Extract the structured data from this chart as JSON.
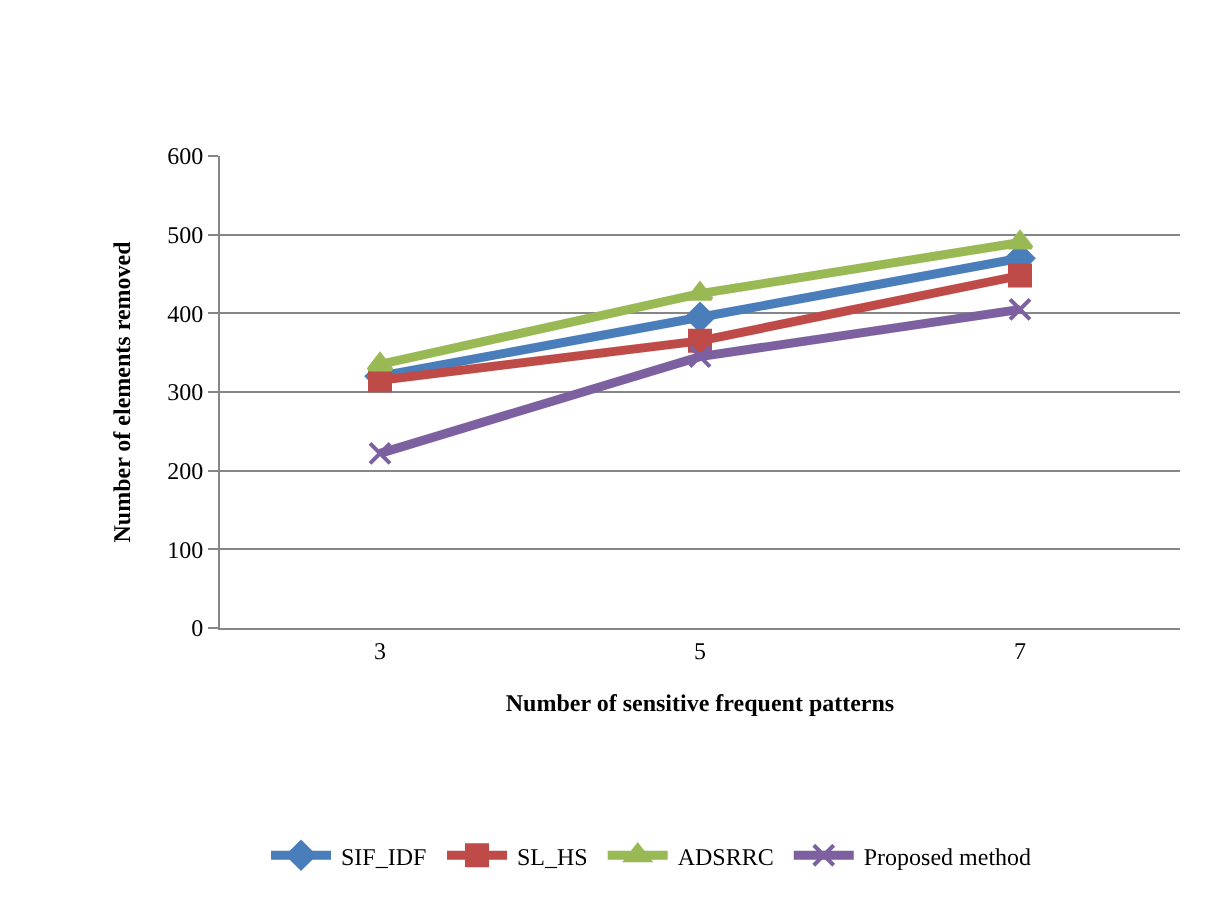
{
  "chart_data": {
    "type": "line",
    "xlabel": "Number of sensitive frequent patterns",
    "ylabel": "Number of elements removed",
    "categories": [
      "3",
      "5",
      "7"
    ],
    "series": [
      {
        "name": "SIF_IDF",
        "color": "#4a7ebb",
        "marker": "diamond",
        "values": [
          320,
          395,
          470
        ]
      },
      {
        "name": "SL_HS",
        "color": "#be4b48",
        "marker": "square",
        "values": [
          315,
          365,
          448
        ]
      },
      {
        "name": "ADSRRC",
        "color": "#98b954",
        "marker": "triangle",
        "values": [
          335,
          425,
          490
        ]
      },
      {
        "name": "Proposed method",
        "color": "#7d60a0",
        "marker": "cross",
        "values": [
          222,
          345,
          405
        ]
      }
    ],
    "ylim": [
      0,
      600
    ],
    "yticks": [
      0,
      100,
      200,
      300,
      400,
      500,
      600
    ],
    "grid": "y",
    "legend": "bottom",
    "line_style": "solid"
  }
}
